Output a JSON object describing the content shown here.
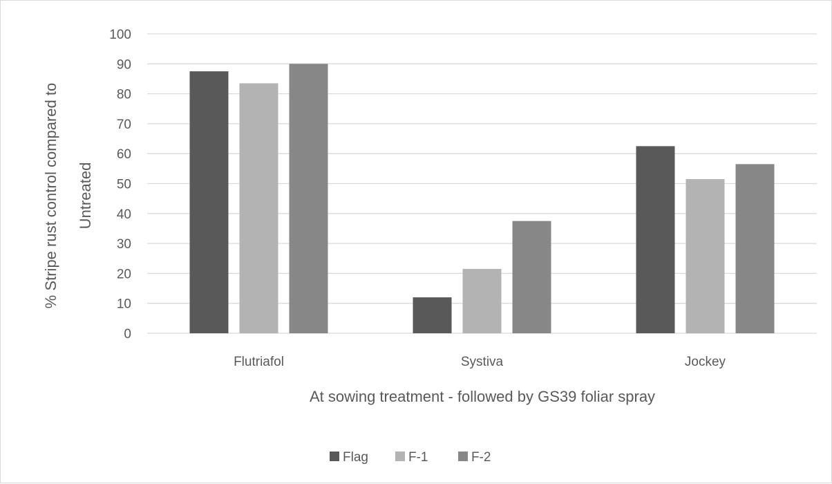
{
  "chart_data": {
    "type": "bar",
    "categories": [
      "Flutriafol",
      "Systiva",
      "Jockey"
    ],
    "series": [
      {
        "name": "Flag",
        "values": [
          87.5,
          12,
          62.5
        ],
        "color": "#595959"
      },
      {
        "name": "F-1",
        "values": [
          83.5,
          21.5,
          51.5
        ],
        "color": "#b3b3b3"
      },
      {
        "name": "F-2",
        "values": [
          90,
          37.5,
          56.5
        ],
        "color": "#878787"
      }
    ],
    "xlabel": "At sowing treatment - followed by GS39 foliar spray",
    "ylabel_lines": [
      "% Stripe rust control compared to",
      "Untreated"
    ],
    "ylim": [
      0,
      100
    ],
    "yticks": [
      0,
      10,
      20,
      30,
      40,
      50,
      60,
      70,
      80,
      90,
      100
    ],
    "grid": true,
    "legend_position": "bottom"
  }
}
